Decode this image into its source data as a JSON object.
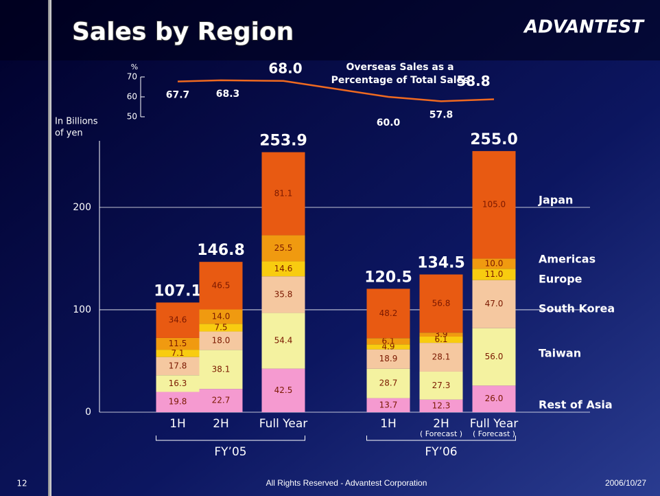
{
  "logo": "ADVANTEST",
  "footer": {
    "page": "12",
    "text": "All Rights Reserved - Advantest Corporation",
    "date": "2006/10/27"
  },
  "chart_data": [
    {
      "type": "bar",
      "title": "Sales by Region",
      "y_label": [
        "In Billions",
        "of yen"
      ],
      "categories": [
        "1H",
        "2H",
        "Full Year",
        "1H",
        "2H",
        "Full Year"
      ],
      "category_notes": [
        null,
        null,
        null,
        null,
        "( Forecast )",
        "( Forecast )"
      ],
      "groups": [
        {
          "name": "FY’05",
          "span": [
            0,
            2
          ]
        },
        {
          "name": "FY’06",
          "span": [
            3,
            5
          ]
        }
      ],
      "ylim": [
        0,
        265
      ],
      "yticks": [
        0,
        100,
        200
      ],
      "grid": true,
      "series": [
        {
          "name": "Rest of Asia",
          "color": "#f59ad0",
          "values": [
            19.8,
            22.7,
            42.5,
            13.7,
            12.3,
            26.0
          ],
          "value_labels": [
            "19.8",
            "22.7",
            "42.5",
            "13.7",
            "12.3",
            "26.0"
          ]
        },
        {
          "name": "Taiwan",
          "color": "#f4f2a0",
          "values": [
            16.3,
            38.1,
            54.4,
            28.7,
            27.3,
            56.0
          ],
          "value_labels": [
            "16.3",
            "38.1",
            "54.4",
            "28.7",
            "27.3",
            "56.0"
          ]
        },
        {
          "name": "South Korea",
          "color": "#f5c8a0",
          "values": [
            17.8,
            18.0,
            35.8,
            18.9,
            28.1,
            47.0
          ],
          "value_labels": [
            "17.8",
            "18.0",
            "35.8",
            "18.9",
            "28.1",
            "47.0"
          ]
        },
        {
          "name": "Europe",
          "color": "#f8cc10",
          "values": [
            7.1,
            7.5,
            14.6,
            4.9,
            6.1,
            11.0
          ],
          "value_labels": [
            "7.1",
            "7.5",
            "14.6",
            "4.9",
            "6.1",
            "11.0"
          ]
        },
        {
          "name": "Americas",
          "color": "#f09a10",
          "values": [
            11.5,
            14.0,
            25.5,
            6.1,
            3.9,
            10.0
          ],
          "value_labels": [
            "11.5",
            "14.0",
            "25.5",
            "6.1",
            "3.9",
            "10.0"
          ]
        },
        {
          "name": "Japan",
          "color": "#e85a12",
          "values": [
            34.6,
            46.5,
            81.1,
            48.2,
            56.8,
            105.0
          ],
          "value_labels": [
            "34.6",
            "46.5",
            "81.1",
            "48.2",
            "56.8",
            "105.0"
          ]
        }
      ],
      "totals": {
        "values": [
          107.1,
          146.8,
          253.9,
          120.5,
          134.5,
          255.0
        ],
        "value_labels": [
          "107.1",
          "146.8",
          "253.9",
          "120.5",
          "134.5",
          "255.0"
        ]
      }
    },
    {
      "type": "line",
      "title": [
        "Overseas Sales as a",
        "Percentage of Total Sales"
      ],
      "y_label": "%",
      "color": "#f06a20",
      "ylim": [
        50,
        70
      ],
      "yticks": [
        50,
        60,
        70
      ],
      "values": [
        67.7,
        68.3,
        68.0,
        60.0,
        57.8,
        58.8
      ],
      "value_labels": [
        "67.7",
        "68.3",
        "68.0",
        "60.0",
        "57.8",
        "58.8"
      ]
    }
  ]
}
